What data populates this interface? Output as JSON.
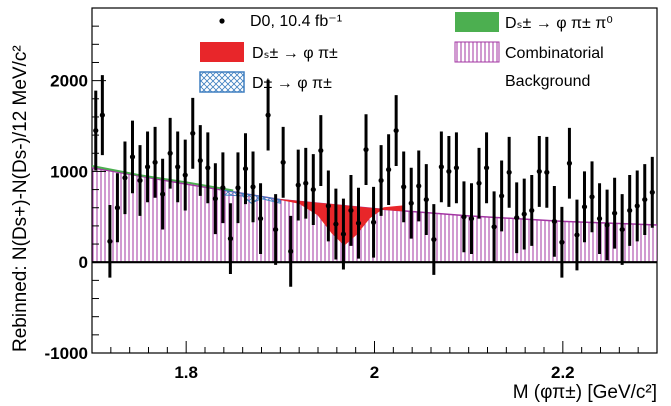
{
  "chart_data": {
    "type": "scatter",
    "title": "",
    "xlabel": "M (φπ±) [GeV/c²]",
    "ylabel": "Rebinned: N(Ds+)-N(Ds-)/12 MeV/c²",
    "xlim": [
      1.7,
      2.3
    ],
    "ylim": [
      -1000,
      2800
    ],
    "x_ticks": [
      1.8,
      2.0,
      2.2
    ],
    "x_tick_labels": [
      "1.8",
      "2",
      "2.2"
    ],
    "y_ticks": [
      -1000,
      0,
      1000,
      2000
    ],
    "y_tick_labels": [
      "-1000",
      "0",
      "1000",
      "2000"
    ],
    "grid": false,
    "legend_position": "top",
    "legend": [
      {
        "name": "D0, 10.4 fb⁻¹",
        "style": "marker"
      },
      {
        "name": "Dₛ± → φ π±",
        "style": "fill-red"
      },
      {
        "name": "D± → φ π±",
        "style": "fill-blue-cross"
      },
      {
        "name": "Dₛ± → φ π± π⁰",
        "style": "fill-green"
      },
      {
        "name": "Combinatorial",
        "style": "fill-purple-hatch"
      },
      {
        "name": "Background",
        "style": "none"
      }
    ],
    "colors": {
      "data": "#000000",
      "ds_phipi": "#e8262a",
      "d_phipi": "#3f7fc0",
      "ds_phipipi0": "#4caf50",
      "combinatorial": "#a335a3"
    },
    "series": [
      {
        "name": "D0, 10.4 fb⁻¹",
        "x": [
          1.704,
          1.711,
          1.719,
          1.727,
          1.735,
          1.743,
          1.751,
          1.759,
          1.767,
          1.775,
          1.783,
          1.791,
          1.799,
          1.807,
          1.815,
          1.823,
          1.831,
          1.839,
          1.847,
          1.855,
          1.863,
          1.871,
          1.879,
          1.887,
          1.895,
          1.903,
          1.911,
          1.919,
          1.927,
          1.935,
          1.943,
          1.951,
          1.959,
          1.967,
          1.975,
          1.983,
          1.991,
          1.999,
          2.007,
          2.015,
          2.023,
          2.031,
          2.039,
          2.047,
          2.055,
          2.063,
          2.071,
          2.079,
          2.087,
          2.095,
          2.103,
          2.111,
          2.119,
          2.127,
          2.135,
          2.143,
          2.151,
          2.159,
          2.167,
          2.175,
          2.183,
          2.191,
          2.199,
          2.207,
          2.215,
          2.223,
          2.231,
          2.239,
          2.247,
          2.255,
          2.263,
          2.271,
          2.279,
          2.287,
          2.295
        ],
        "y": [
          1450,
          1620,
          230,
          600,
          930,
          1160,
          900,
          1050,
          1100,
          750,
          1200,
          1050,
          960,
          1420,
          1120,
          1040,
          700,
          820,
          260,
          820,
          1030,
          830,
          480,
          1620,
          360,
          1100,
          120,
          850,
          870,
          800,
          1230,
          620,
          420,
          310,
          570,
          430,
          1240,
          440,
          900,
          1020,
          1450,
          830,
          650,
          840,
          690,
          250,
          1050,
          1000,
          1040,
          500,
          480,
          870,
          1040,
          390,
          730,
          990,
          490,
          530,
          570,
          1000,
          990,
          450,
          220,
          1090,
          300,
          610,
          720,
          480,
          410,
          540,
          360,
          570,
          620,
          690,
          770
        ],
        "yerr": [
          440,
          440,
          400,
          380,
          400,
          400,
          390,
          390,
          390,
          390,
          390,
          390,
          390,
          390,
          390,
          390,
          390,
          390,
          390,
          390,
          390,
          390,
          390,
          390,
          390,
          390,
          390,
          390,
          390,
          390,
          390,
          390,
          390,
          390,
          390,
          390,
          390,
          390,
          390,
          390,
          390,
          390,
          390,
          390,
          390,
          390,
          390,
          390,
          390,
          390,
          390,
          390,
          390,
          390,
          390,
          390,
          390,
          390,
          390,
          390,
          390,
          390,
          390,
          390,
          390,
          390,
          390,
          390,
          390,
          390,
          390,
          390,
          390,
          390,
          390
        ]
      },
      {
        "name": "Combinatorial",
        "x": [
          1.7,
          1.8,
          1.9,
          2.0,
          2.1,
          2.2,
          2.3
        ],
        "y": [
          1040,
          860,
          690,
          590,
          510,
          450,
          410
        ]
      },
      {
        "name": "Dₛ± → φ π± π⁰",
        "x": [
          1.7,
          1.75,
          1.8,
          1.85
        ],
        "y": [
          1060,
          960,
          880,
          790
        ]
      },
      {
        "name": "D± → φ π±",
        "x": [
          1.84,
          1.86,
          1.869,
          1.88,
          1.9
        ],
        "y": [
          740,
          730,
          650,
          700,
          650
        ]
      },
      {
        "name": "Dₛ± → φ π±",
        "x": [
          1.9,
          1.92,
          1.94,
          1.955,
          1.968,
          1.98,
          1.995,
          2.01,
          2.03
        ],
        "y": [
          690,
          650,
          520,
          320,
          190,
          300,
          490,
          600,
          620
        ]
      }
    ]
  }
}
